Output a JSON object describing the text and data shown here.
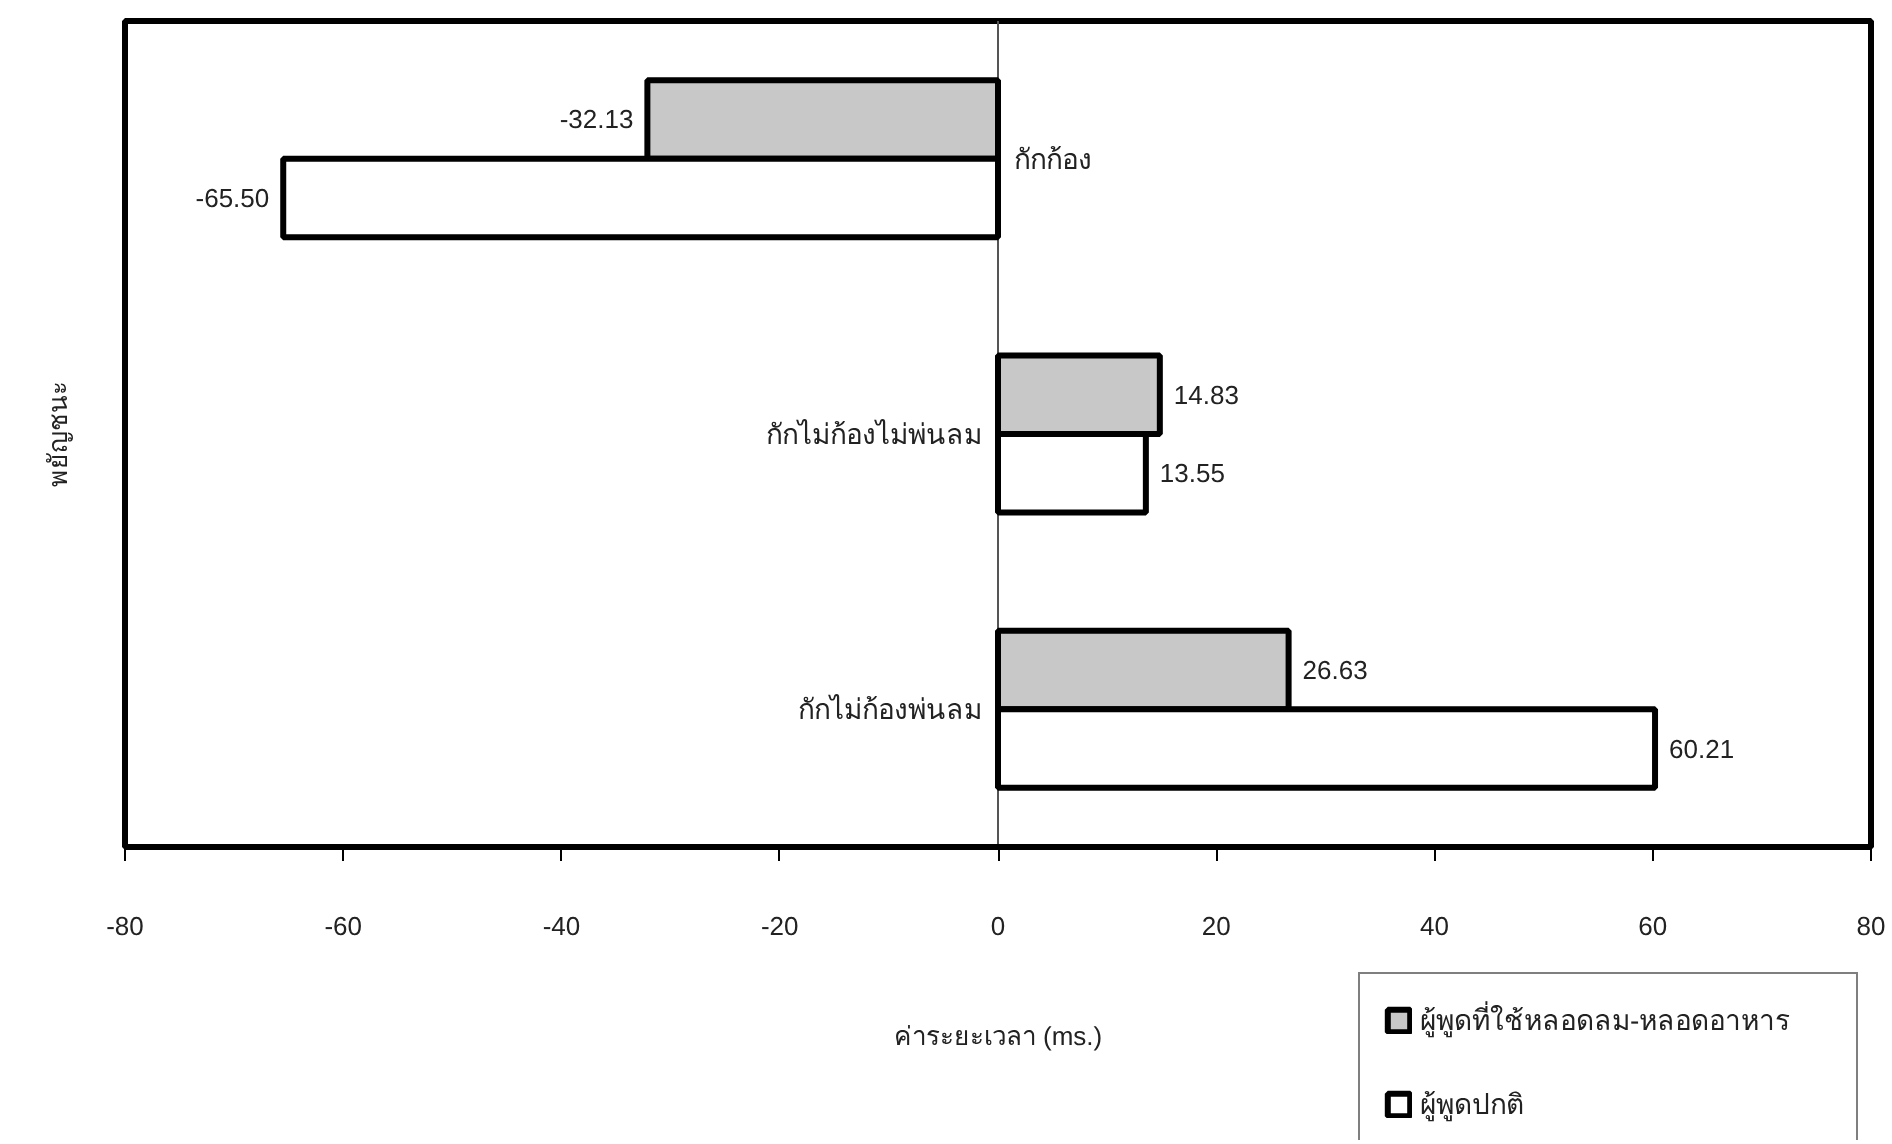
{
  "chart_data": {
    "type": "bar",
    "orientation": "horizontal",
    "xlabel": "ค่าระยะเวลา (ms.)",
    "ylabel": "พยัญชนะ",
    "categories": [
      "กักก้อง",
      "กักไม่ก้องไม่พ่นลม",
      "กักไม่ก้องพ่นลม"
    ],
    "series": [
      {
        "name": "ผู้พูดที่ใช้หลอดลม-หลอดอาหาร",
        "color": "#c8c8c8",
        "values": [
          -32.13,
          14.83,
          26.63
        ],
        "value_labels": [
          "-32.13",
          "14.83",
          "26.63"
        ]
      },
      {
        "name": "ผู้พูดปกติ",
        "color": "#ffffff",
        "values": [
          -65.5,
          13.55,
          60.21
        ],
        "value_labels": [
          "-65.50",
          "13.55",
          "60.21"
        ]
      }
    ],
    "xlim": [
      -80,
      80
    ],
    "xticks": [
      -80,
      -60,
      -40,
      -20,
      0,
      20,
      40,
      60,
      80
    ],
    "grid": false,
    "legend": "bottom right"
  }
}
